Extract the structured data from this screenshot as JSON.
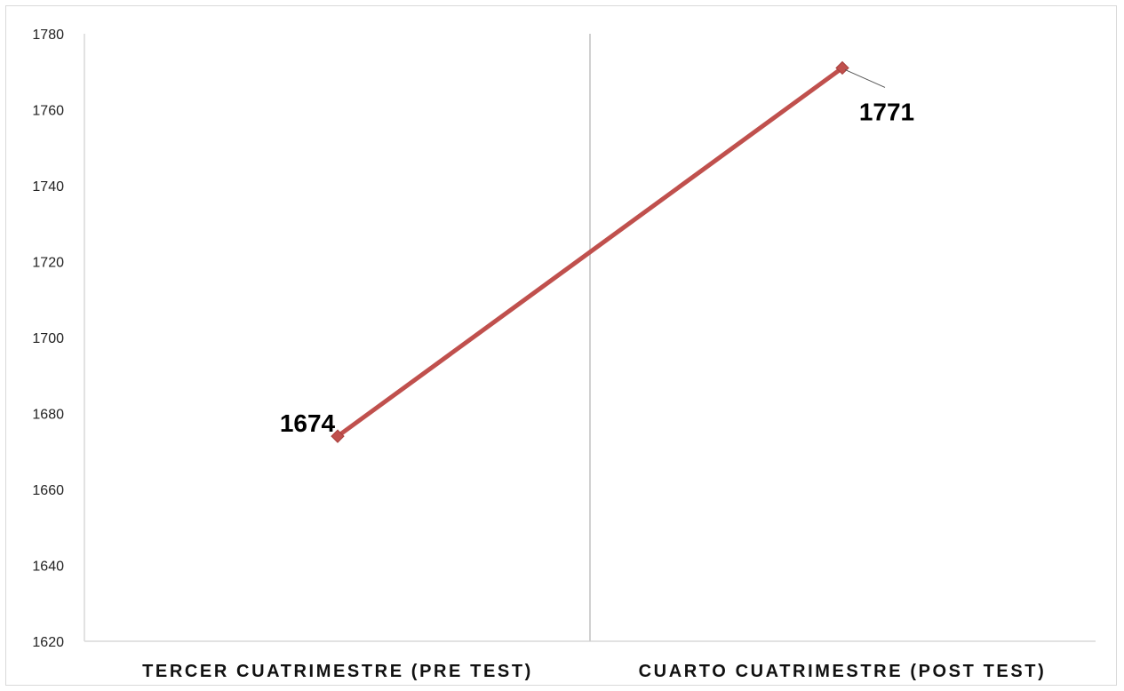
{
  "chart_data": {
    "type": "line",
    "categories": [
      "TERCER CUATRIMESTRE (PRE TEST)",
      "CUARTO CUATRIMESTRE (POST TEST)"
    ],
    "series": [
      {
        "values": [
          1674,
          1771
        ],
        "color": "#c0504d",
        "marker": "diamond"
      }
    ],
    "data_labels": [
      "1674",
      "1771"
    ],
    "ylim": [
      1620,
      1780
    ],
    "yticks": [
      1620,
      1640,
      1660,
      1680,
      1700,
      1720,
      1740,
      1760,
      1780
    ],
    "ytick_labels": [
      "1620",
      "1640",
      "1660",
      "1680",
      "1700",
      "1720",
      "1740",
      "1760",
      "1780"
    ],
    "grid": "vertical category separator",
    "legend": "none",
    "title": "",
    "xlabel": "",
    "ylabel": ""
  }
}
